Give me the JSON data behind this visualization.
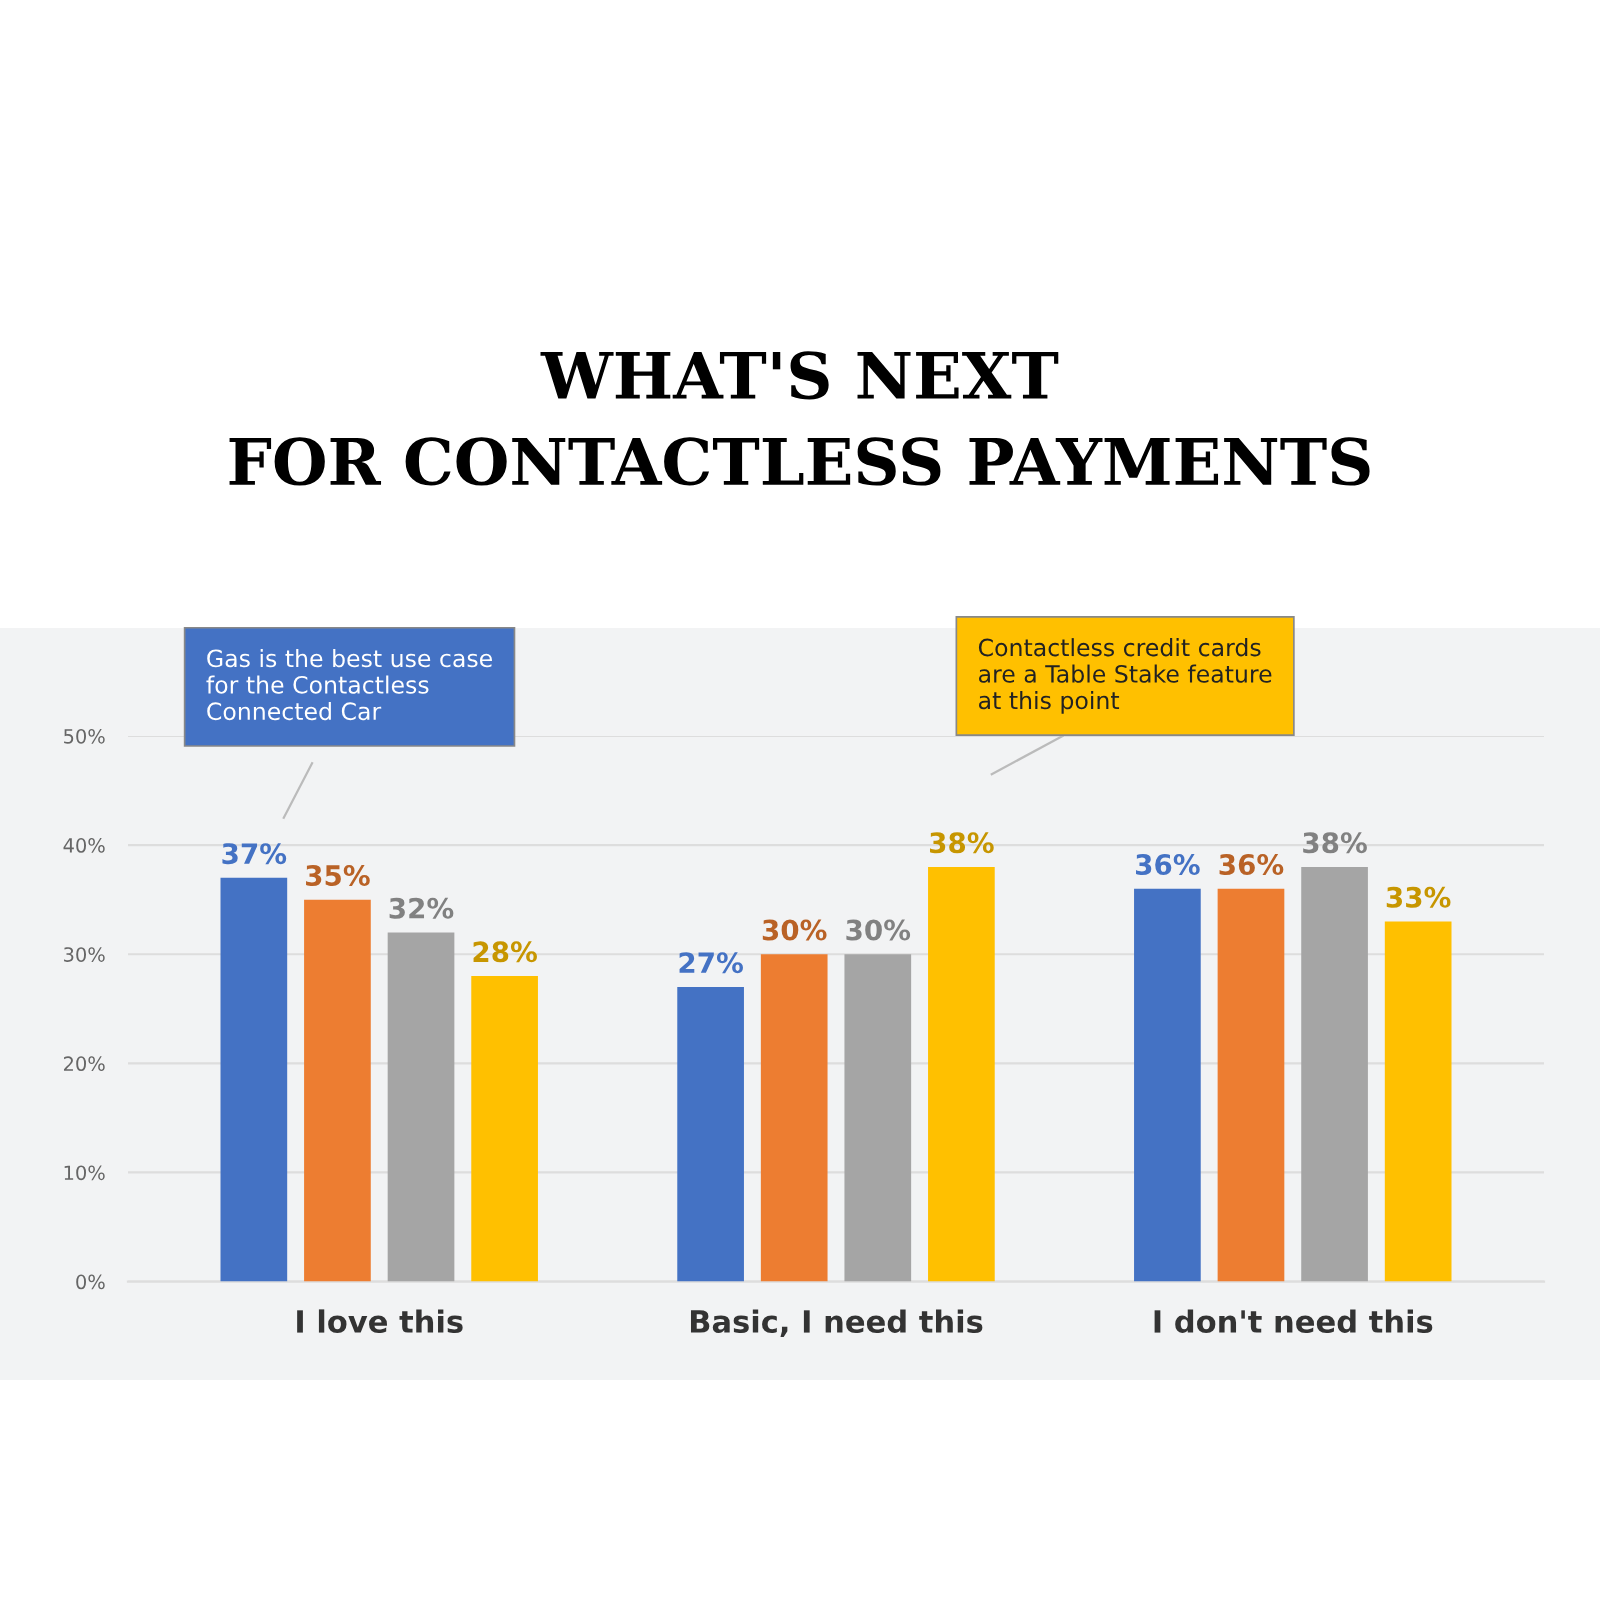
{
  "chart_data": {
    "type": "bar",
    "title": "WHAT'S NEXT\nFOR CONTACTLESS PAYMENTS",
    "categories": [
      "I love this",
      "Basic, I need this",
      "I don't need this"
    ],
    "series": [
      {
        "color": "#4472c4",
        "values": [
          37,
          27,
          36
        ],
        "value_labels": [
          "37%",
          "27%",
          "36%"
        ]
      },
      {
        "color": "#ed7d31",
        "values": [
          35,
          30,
          36
        ],
        "value_labels": [
          "35%",
          "30%",
          "36%"
        ]
      },
      {
        "color": "#a5a5a5",
        "values": [
          32,
          30,
          38
        ],
        "value_labels": [
          "32%",
          "30%",
          "38%"
        ]
      },
      {
        "color": "#ffc000",
        "values": [
          28,
          38,
          33
        ],
        "value_labels": [
          "28%",
          "38%",
          "33%"
        ]
      }
    ],
    "ylim": [
      0,
      50
    ],
    "yticks": [
      {
        "value": 0,
        "label": "0%"
      },
      {
        "value": 10,
        "label": "10%"
      },
      {
        "value": 20,
        "label": "20%"
      },
      {
        "value": 30,
        "label": "30%"
      },
      {
        "value": 40,
        "label": "40%"
      },
      {
        "value": 50,
        "label": "50%"
      }
    ],
    "grid": "y",
    "annotations": [
      "Gas is the best use case\nfor the Contactless\nConnected Car",
      "Contactless credit cards\nare a Table Stake feature\nat this point"
    ]
  }
}
